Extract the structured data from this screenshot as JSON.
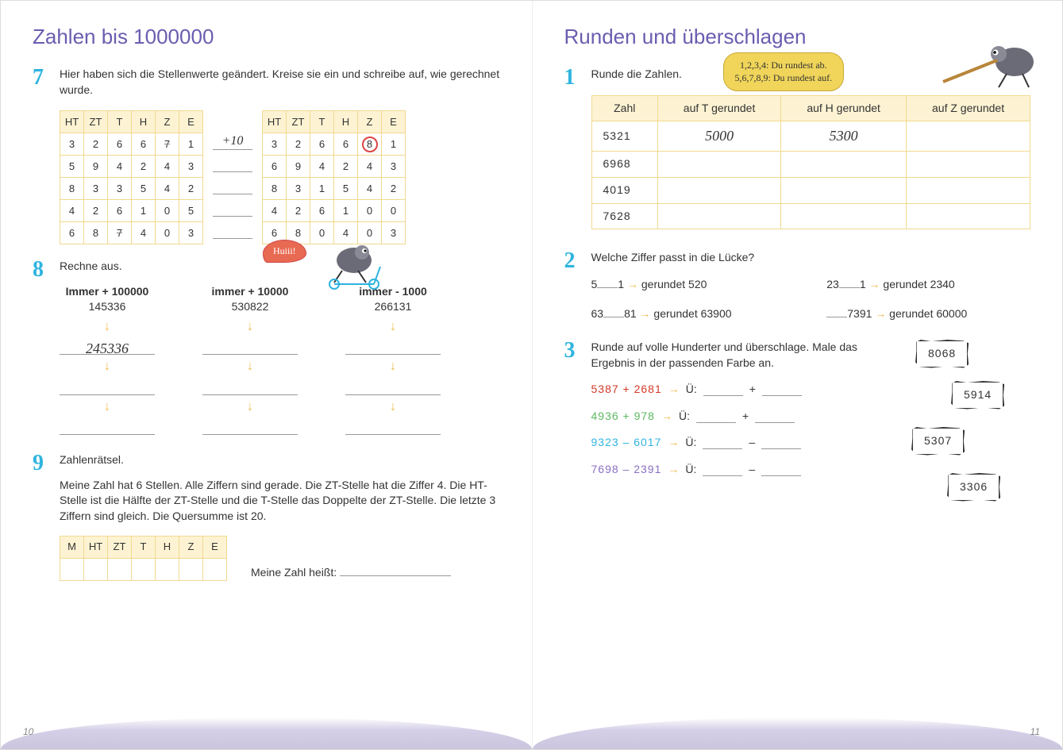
{
  "left": {
    "title": "Zahlen bis 1000000",
    "ex7": {
      "num": "7",
      "prompt": "Hier haben sich die Stellenwerte geändert. Kreise sie ein und schreibe auf, wie gerechnet wurde.",
      "headers": [
        "HT",
        "ZT",
        "T",
        "H",
        "Z",
        "E"
      ],
      "tableA": [
        [
          "3",
          "2",
          "6",
          "6",
          "7",
          "1"
        ],
        [
          "5",
          "9",
          "4",
          "2",
          "4",
          "3"
        ],
        [
          "8",
          "3",
          "3",
          "5",
          "4",
          "2"
        ],
        [
          "4",
          "2",
          "6",
          "1",
          "0",
          "5"
        ],
        [
          "6",
          "8",
          "7",
          "4",
          "0",
          "3"
        ]
      ],
      "tableA_strike": [
        [
          0,
          4
        ],
        [
          4,
          2
        ]
      ],
      "tableB": [
        [
          "3",
          "2",
          "6",
          "6",
          "8",
          "1"
        ],
        [
          "6",
          "9",
          "4",
          "2",
          "4",
          "3"
        ],
        [
          "8",
          "3",
          "1",
          "5",
          "4",
          "2"
        ],
        [
          "4",
          "2",
          "6",
          "1",
          "0",
          "0"
        ],
        [
          "6",
          "8",
          "0",
          "4",
          "0",
          "3"
        ]
      ],
      "tableB_circle": [
        0,
        4
      ],
      "op_first": "+10"
    },
    "ex8": {
      "num": "8",
      "prompt": "Rechne aus.",
      "bubble": "Huiii!",
      "cols": [
        {
          "head": "Immer + 100000",
          "start": "145336",
          "ans": "245336"
        },
        {
          "head": "immer + 10000",
          "start": "530822",
          "ans": ""
        },
        {
          "head": "immer - 1000",
          "start": "266131",
          "ans": ""
        }
      ]
    },
    "ex9": {
      "num": "9",
      "prompt": "Zahlenrätsel.",
      "text": "Meine Zahl hat 6 Stellen. Alle Ziffern sind gerade. Die ZT-Stelle hat die Ziffer 4. Die HT-Stelle ist die Hälfte der ZT-Stelle und die T-Stelle das Doppelte der ZT-Stelle. Die letzte 3 Ziffern sind gleich. Die Quersumme ist 20.",
      "headers7": [
        "M",
        "HT",
        "ZT",
        "T",
        "H",
        "Z",
        "E"
      ],
      "answer_label": "Meine Zahl heißt:"
    },
    "pagenum": "10"
  },
  "right": {
    "title": "Runden und überschlagen",
    "ex1": {
      "num": "1",
      "prompt": "Runde die Zahlen.",
      "bubble_l1": "1,2,3,4: Du rundest ab.",
      "bubble_l2": "5,6,7,8,9: Du rundest auf.",
      "headers": [
        "Zahl",
        "auf T gerundet",
        "auf H gerundet",
        "auf Z gerundet"
      ],
      "rows": [
        {
          "z": "5321",
          "t": "5000",
          "h": "5300",
          "zz": ""
        },
        {
          "z": "6968",
          "t": "",
          "h": "",
          "zz": ""
        },
        {
          "z": "4019",
          "t": "",
          "h": "",
          "zz": ""
        },
        {
          "z": "7628",
          "t": "",
          "h": "",
          "zz": ""
        }
      ]
    },
    "ex2": {
      "num": "2",
      "prompt": "Welche Ziffer passt in die Lücke?",
      "items": [
        {
          "pre": "5",
          "post": "1",
          "res": "gerundet 520"
        },
        {
          "pre": "23",
          "post": "1",
          "res": "gerundet 2340"
        },
        {
          "pre": "63",
          "post": "81",
          "res": "gerundet 63900"
        },
        {
          "pre": "",
          "post": "7391",
          "res": "gerundet 60000"
        }
      ]
    },
    "ex3": {
      "num": "3",
      "prompt": "Runde auf volle Hunderter und überschlage. Male das Ergebnis in der passenden Farbe an.",
      "rows": [
        {
          "expr": "5387 + 2681",
          "op": "+",
          "color": "#d43a2a"
        },
        {
          "expr": "4936 + 978",
          "op": "+",
          "color": "#5cb860"
        },
        {
          "expr": "9323 – 6017",
          "op": "–",
          "color": "#2fb4df"
        },
        {
          "expr": "7698 – 2391",
          "op": "–",
          "color": "#8b6fc4"
        }
      ],
      "tokens": [
        "8068",
        "5914",
        "5307",
        "3306"
      ],
      "u_label": "Ü:"
    },
    "pagenum": "11"
  }
}
